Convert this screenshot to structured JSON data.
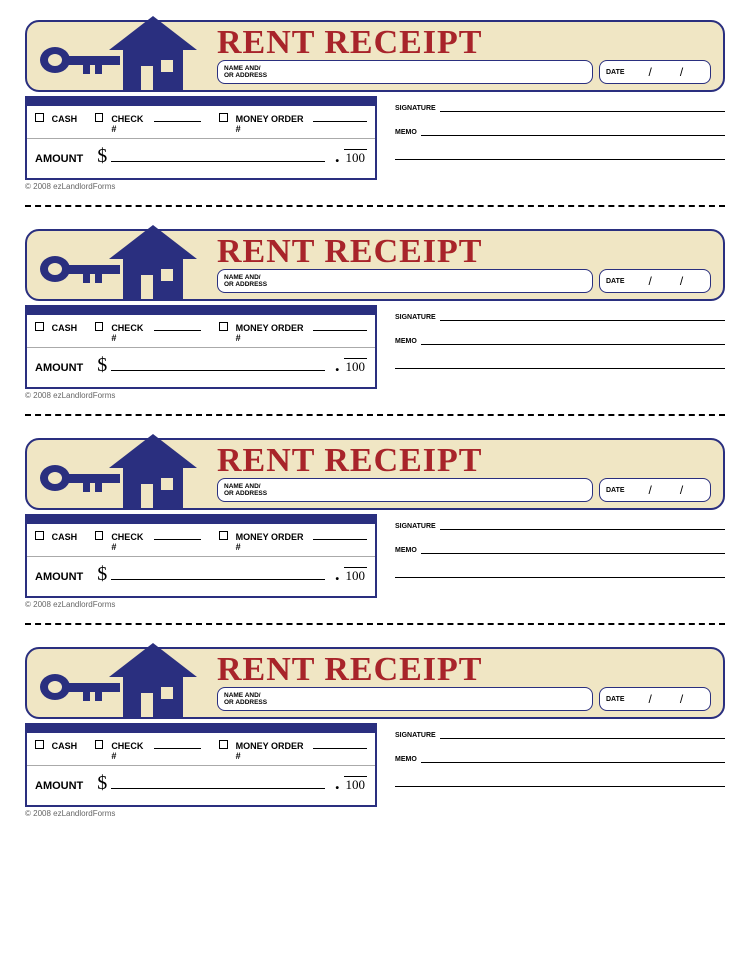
{
  "colors": {
    "primary_blue": "#2a2f7f",
    "title_red": "#a8242a",
    "header_bg": "#f0e6c4",
    "page_bg": "#ffffff"
  },
  "receipt": {
    "title": "RENT RECEIPT",
    "name_label_line1": "NAME AND/",
    "name_label_line2": "OR ADDRESS",
    "date_label": "DATE",
    "date_sep": "/",
    "payment": {
      "cash": "CASH",
      "check": "CHECK #",
      "money_order": "MONEY ORDER #",
      "amount_label": "AMOUNT",
      "currency_symbol": "$",
      "decimal_point": ".",
      "cents_denom": "100"
    },
    "signature_label": "SIGNATURE",
    "memo_label": "MEMO",
    "copyright": "© 2008 ezLandlordForms"
  },
  "repeat_count": 4
}
